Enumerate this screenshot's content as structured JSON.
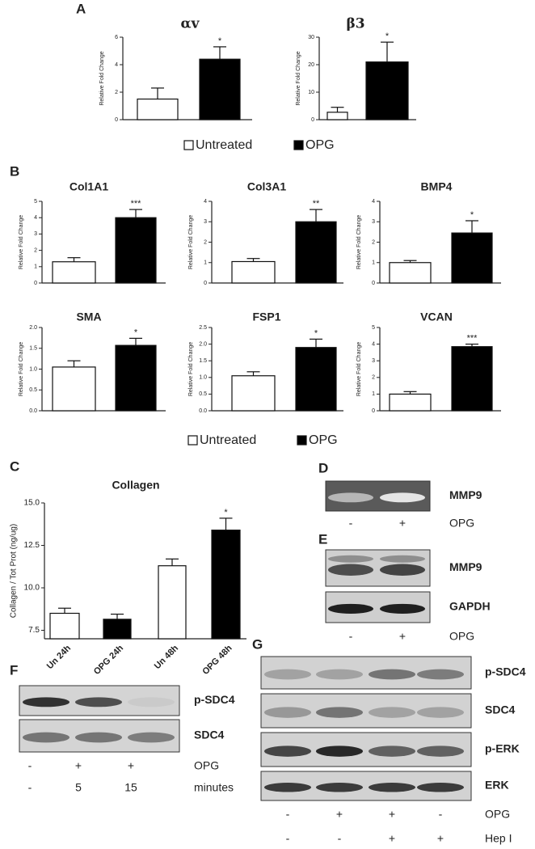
{
  "panel_labels": [
    "A",
    "B",
    "C",
    "D",
    "E",
    "F",
    "G"
  ],
  "chart_data": [
    {
      "type": "bar",
      "title": "αv",
      "y_label": "Relative Fold Change",
      "categories": [
        null,
        null
      ],
      "values": [
        1.5,
        4.4
      ],
      "errors": [
        0.8,
        0.9
      ],
      "value_annotations": [
        null,
        "*"
      ],
      "colors": [
        "#ffffff",
        "#000000"
      ],
      "ylim": [
        0,
        6
      ],
      "yticks": [
        0,
        2,
        4,
        6
      ]
    },
    {
      "type": "bar",
      "title": "β3",
      "y_label": "Relative Fold Change",
      "categories": [
        null,
        null
      ],
      "values": [
        2.7,
        21
      ],
      "errors": [
        1.8,
        7.2
      ],
      "value_annotations": [
        null,
        "*"
      ],
      "colors": [
        "#ffffff",
        "#000000"
      ],
      "ylim": [
        0,
        30
      ],
      "yticks": [
        0,
        10,
        20,
        30
      ]
    },
    {
      "type": "bar",
      "title": "Col1A1",
      "y_label": "Relative Fold Change",
      "categories": [
        null,
        null
      ],
      "values": [
        1.3,
        4.0
      ],
      "errors": [
        0.25,
        0.5
      ],
      "value_annotations": [
        null,
        "***"
      ],
      "colors": [
        "#ffffff",
        "#000000"
      ],
      "ylim": [
        0,
        5
      ],
      "yticks": [
        0,
        1,
        2,
        3,
        4,
        5
      ]
    },
    {
      "type": "bar",
      "title": "Col3A1",
      "y_label": "Relative Fold Change",
      "categories": [
        null,
        null
      ],
      "values": [
        1.05,
        3.0
      ],
      "errors": [
        0.15,
        0.6
      ],
      "value_annotations": [
        null,
        "**"
      ],
      "colors": [
        "#ffffff",
        "#000000"
      ],
      "ylim": [
        0,
        4
      ],
      "yticks": [
        0,
        1,
        2,
        3,
        4
      ]
    },
    {
      "type": "bar",
      "title": "BMP4",
      "y_label": "Relative Fold Change",
      "categories": [
        null,
        null
      ],
      "values": [
        1.0,
        2.45
      ],
      "errors": [
        0.1,
        0.6
      ],
      "value_annotations": [
        null,
        "*"
      ],
      "colors": [
        "#ffffff",
        "#000000"
      ],
      "ylim": [
        0,
        4
      ],
      "yticks": [
        0,
        1,
        2,
        3,
        4
      ]
    },
    {
      "type": "bar",
      "title": "SMA",
      "y_label": "Relative Fold Change",
      "categories": [
        null,
        null
      ],
      "values": [
        1.05,
        1.57
      ],
      "errors": [
        0.15,
        0.17
      ],
      "value_annotations": [
        null,
        "*"
      ],
      "colors": [
        "#ffffff",
        "#000000"
      ],
      "ylim": [
        0,
        2
      ],
      "yticks": [
        {
          "value": 0,
          "label": "0.0"
        },
        0.5,
        {
          "value": 1,
          "label": "1.0"
        },
        1.5,
        {
          "value": 2,
          "label": "2.0"
        }
      ]
    },
    {
      "type": "bar",
      "title": "FSP1",
      "y_label": "Relative Fold Change",
      "categories": [
        null,
        null
      ],
      "values": [
        1.05,
        1.9
      ],
      "errors": [
        0.12,
        0.25
      ],
      "value_annotations": [
        null,
        "*"
      ],
      "colors": [
        "#ffffff",
        "#000000"
      ],
      "ylim": [
        0,
        2.5
      ],
      "yticks": [
        {
          "value": 0,
          "label": "0.0"
        },
        0.5,
        {
          "value": 1,
          "label": "1.0"
        },
        1.5,
        {
          "value": 2,
          "label": "2.0"
        },
        2.5
      ]
    },
    {
      "type": "bar",
      "title": "VCAN",
      "y_label": "Relative Fold Change",
      "categories": [
        null,
        null
      ],
      "values": [
        1.0,
        3.85
      ],
      "errors": [
        0.15,
        0.15
      ],
      "value_annotations": [
        null,
        "***"
      ],
      "colors": [
        "#ffffff",
        "#000000"
      ],
      "ylim": [
        0,
        5
      ],
      "yticks": [
        0,
        1,
        2,
        3,
        4,
        5
      ]
    },
    {
      "type": "bar",
      "title": "Collagen",
      "y_label": "Collagen / Tot Prot (ng/ug)",
      "categories": [
        "Un 24h",
        "OPG 24h",
        "Un 48h",
        "OPG 48h"
      ],
      "values": [
        8.5,
        8.15,
        11.3,
        13.4
      ],
      "errors": [
        0.3,
        0.3,
        0.4,
        0.7
      ],
      "value_annotations": [
        null,
        null,
        null,
        "*"
      ],
      "colors": [
        "#ffffff",
        "#000000",
        "#ffffff",
        "#000000"
      ],
      "ylim": [
        7,
        15
      ],
      "yticks": [
        7.5,
        {
          "value": 10,
          "label": "10.0"
        },
        12.5,
        {
          "value": 15,
          "label": "15.0"
        }
      ]
    }
  ],
  "legends": [
    {
      "items": [
        {
          "label": "Untreated",
          "color": "#ffffff"
        },
        {
          "label": "OPG",
          "color": "#000000"
        }
      ]
    },
    {
      "items": [
        {
          "label": "Untreated",
          "color": "#ffffff"
        },
        {
          "label": "OPG",
          "color": "#000000"
        }
      ]
    }
  ],
  "blots": [
    {
      "rows": [
        "MMP9"
      ],
      "conditions": [
        {
          "label": "OPG",
          "lanes": [
            "-",
            "+"
          ]
        }
      ]
    },
    {
      "rows": [
        "MMP9",
        "GAPDH"
      ],
      "conditions": [
        {
          "label": "OPG",
          "lanes": [
            "-",
            "+"
          ]
        }
      ]
    },
    {
      "rows": [
        "p-SDC4",
        "SDC4"
      ],
      "conditions": [
        {
          "label": "OPG",
          "lanes": [
            "-",
            "+",
            "+"
          ]
        },
        {
          "label": "minutes",
          "lanes": [
            "-",
            "5",
            "15"
          ]
        }
      ]
    },
    {
      "rows": [
        "p-SDC4",
        "SDC4",
        "p-ERK",
        "ERK"
      ],
      "conditions": [
        {
          "label": "OPG",
          "lanes": [
            "-",
            "+",
            "+",
            "-"
          ]
        },
        {
          "label": "Hep I",
          "lanes": [
            "-",
            "-",
            "+",
            "+"
          ]
        }
      ]
    }
  ]
}
